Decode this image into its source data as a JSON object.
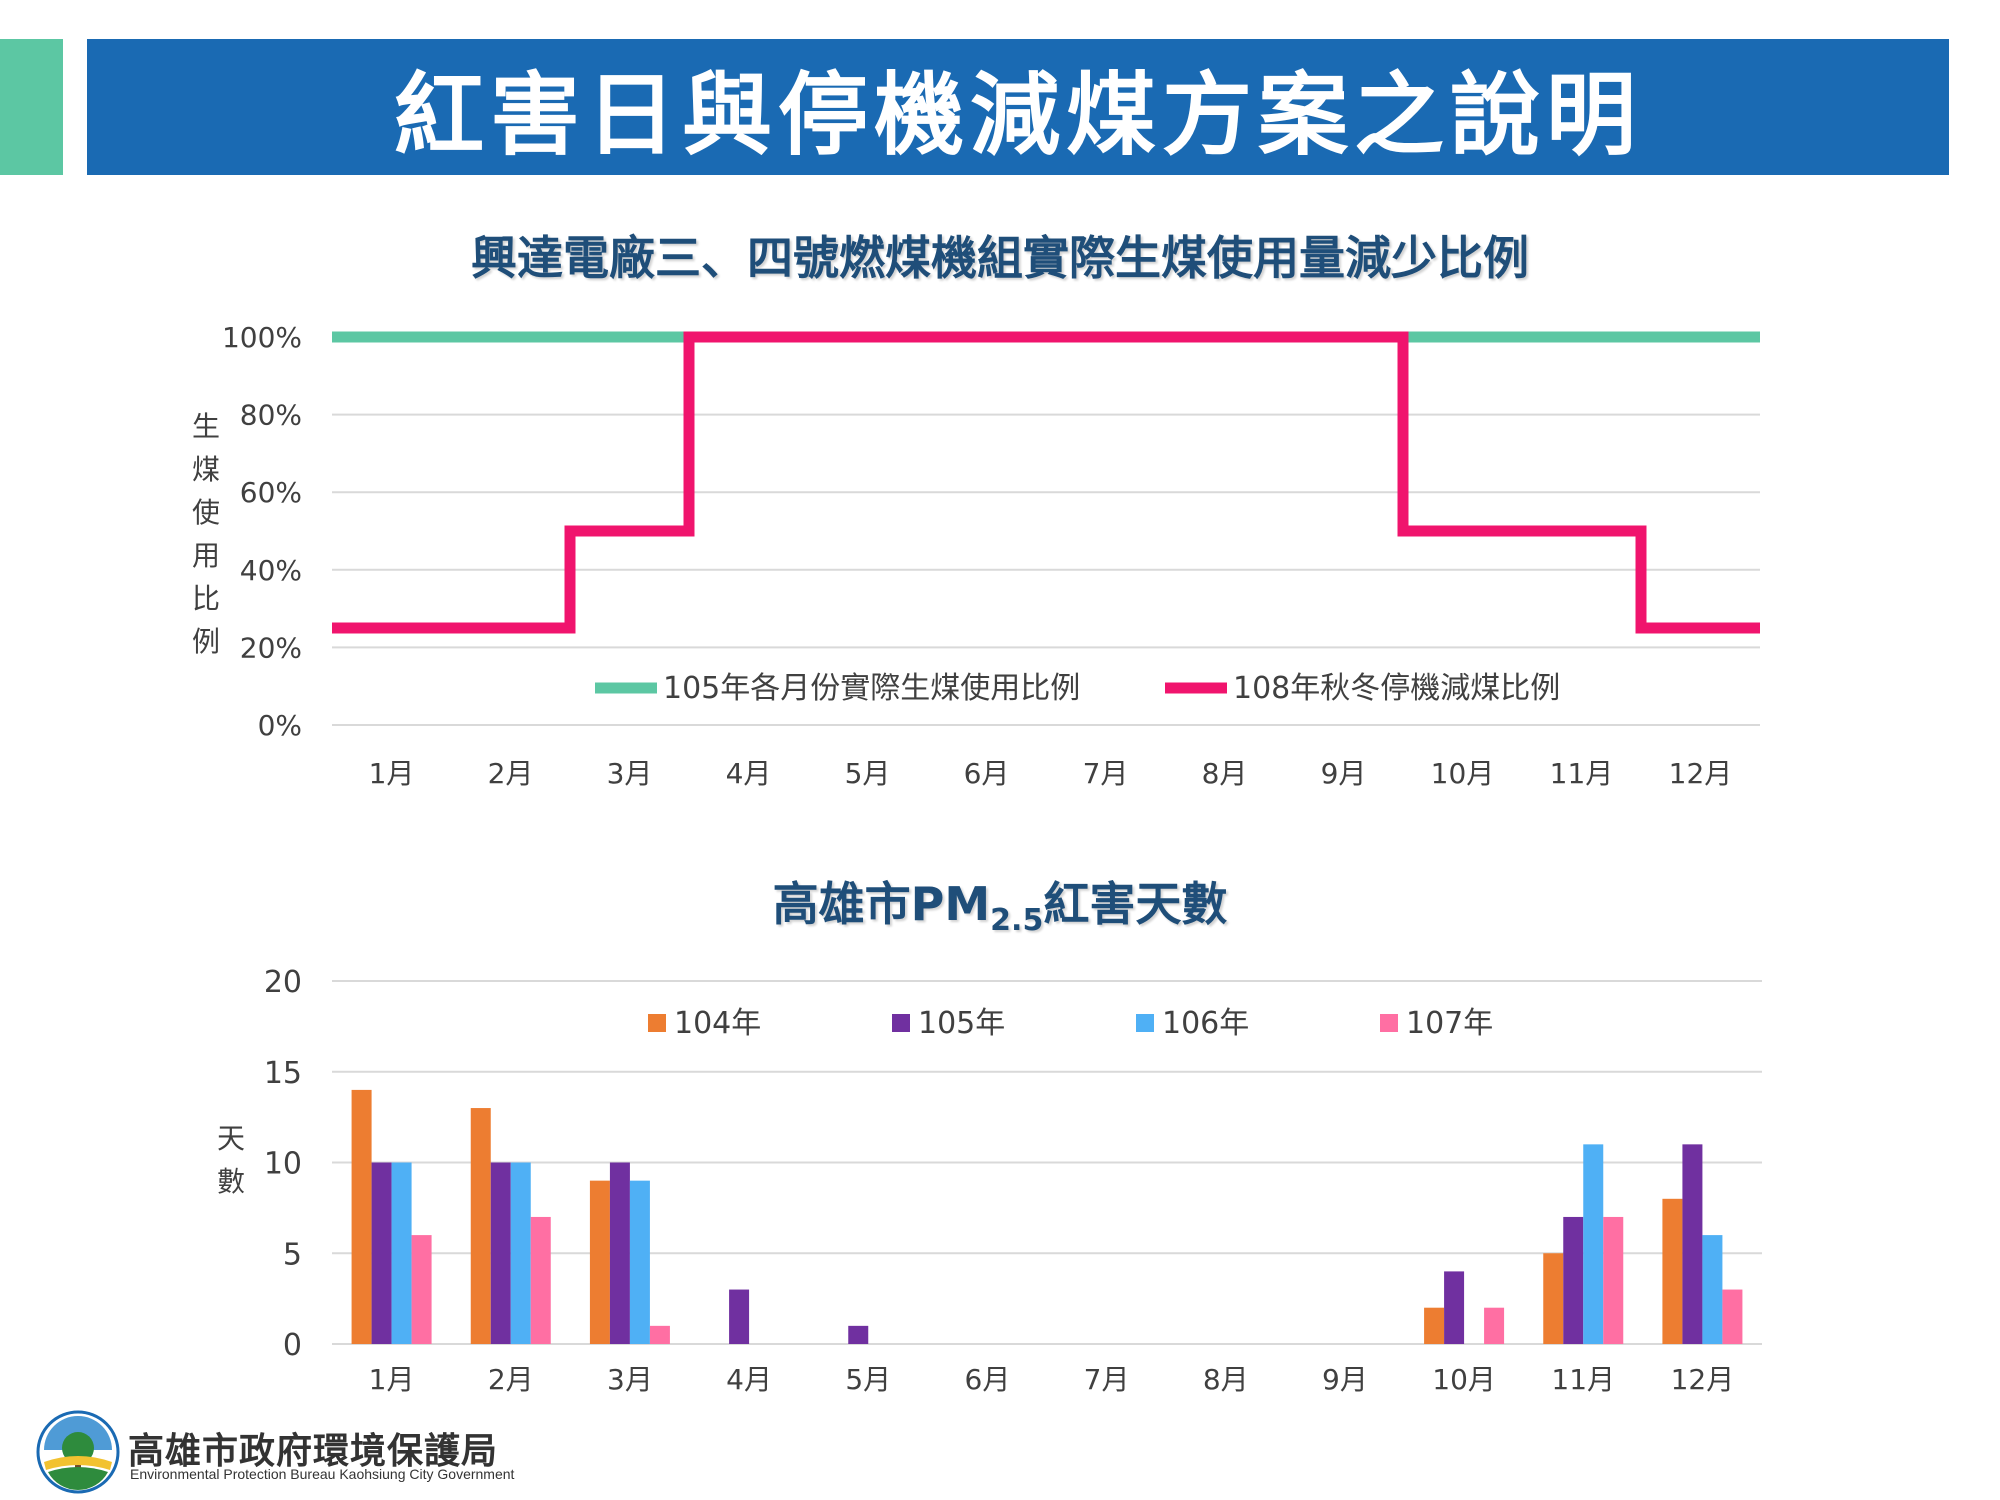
{
  "page_title": "紅害日與停機減煤方案之說明",
  "colors": {
    "title_bar": "#1a6ab3",
    "accent": "#5cc7a3",
    "chart_title": "#1f4e79"
  },
  "footer": {
    "org_cn": "高雄市政府環境保護局",
    "org_en": "Environmental Protection Bureau Kaohsiung City Government",
    "logo_icon": "epb-emblem-icon"
  },
  "chart_data": [
    {
      "type": "line",
      "step": true,
      "title": "興達電廠三、四號燃煤機組實際生煤使用量減少比例",
      "ylabel": "生煤使用比例",
      "xlabel": "",
      "categories": [
        "1月",
        "2月",
        "3月",
        "4月",
        "5月",
        "6月",
        "7月",
        "8月",
        "9月",
        "10月",
        "11月",
        "12月"
      ],
      "ylim": [
        0,
        100
      ],
      "yticks": [
        "0%",
        "20%",
        "40%",
        "60%",
        "80%",
        "100%"
      ],
      "ytick_values": [
        0,
        20,
        40,
        60,
        80,
        100
      ],
      "grid": true,
      "legend_position": "bottom-center",
      "series": [
        {
          "name": "105年各月份實際生煤使用比例",
          "color": "#5cc7a3",
          "values": [
            100,
            100,
            100,
            100,
            100,
            100,
            100,
            100,
            100,
            100,
            100,
            100
          ]
        },
        {
          "name": "108年秋冬停機減煤比例",
          "color": "#f0146d",
          "values": [
            25,
            25,
            50,
            100,
            100,
            100,
            100,
            100,
            100,
            50,
            50,
            25
          ]
        }
      ]
    },
    {
      "type": "bar",
      "title_main": "高雄市PM",
      "title_sub": "2.5",
      "title_tail": "紅害天數",
      "ylabel": "天數",
      "xlabel": "",
      "categories": [
        "1月",
        "2月",
        "3月",
        "4月",
        "5月",
        "6月",
        "7月",
        "8月",
        "9月",
        "10月",
        "11月",
        "12月"
      ],
      "ylim": [
        0,
        20
      ],
      "yticks": [
        "0",
        "5",
        "10",
        "15",
        "20"
      ],
      "ytick_values": [
        0,
        5,
        10,
        15,
        20
      ],
      "grid": true,
      "legend_position": "top-center",
      "series": [
        {
          "name": "104年",
          "color": "#ed7d31",
          "values": [
            14,
            13,
            9,
            0,
            0,
            0,
            0,
            0,
            0,
            2,
            5,
            8
          ]
        },
        {
          "name": "105年",
          "color": "#7030a0",
          "values": [
            10,
            10,
            10,
            3,
            1,
            0,
            0,
            0,
            0,
            4,
            7,
            11
          ]
        },
        {
          "name": "106年",
          "color": "#4fb0f5",
          "values": [
            10,
            10,
            9,
            0,
            0,
            0,
            0,
            0,
            0,
            0,
            11,
            6
          ]
        },
        {
          "name": "107年",
          "color": "#ff6fa3",
          "values": [
            6,
            7,
            1,
            0,
            0,
            0,
            0,
            0,
            0,
            2,
            7,
            3
          ]
        }
      ]
    }
  ]
}
